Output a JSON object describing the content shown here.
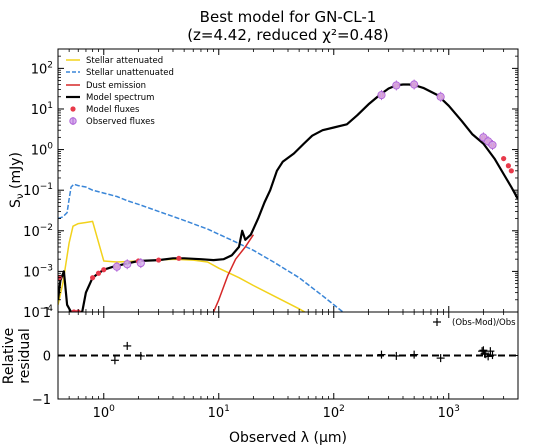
{
  "chart_data": [
    {
      "type": "line",
      "title_line1": "Best model for GN-CL-1",
      "title_line2": "(z=4.42, reduced χ²=0.48)",
      "ylabel_main": "S",
      "ylabel_sub": "ν",
      "ylabel_unit": " (mJy)",
      "xscale": "log",
      "yscale": "log",
      "xlim": [
        0.4,
        4000
      ],
      "ylim": [
        0.0001,
        300
      ],
      "legend_position": "upper-left",
      "yticks": [
        {
          "value": 0.0001,
          "base": "10",
          "exp": "−4"
        },
        {
          "value": 0.001,
          "base": "10",
          "exp": "−3"
        },
        {
          "value": 0.01,
          "base": "10",
          "exp": "−2"
        },
        {
          "value": 0.1,
          "base": "10",
          "exp": "−1"
        },
        {
          "value": 1,
          "base": "10",
          "exp": "0"
        },
        {
          "value": 10,
          "base": "10",
          "exp": "1"
        },
        {
          "value": 100,
          "base": "10",
          "exp": "2"
        }
      ],
      "series": [
        {
          "name": "Stellar attenuated",
          "color": "#f2d21b",
          "style": "solid",
          "points": [
            [
              0.4,
              0.00015
            ],
            [
              0.44,
              0.0005
            ],
            [
              0.5,
              0.005
            ],
            [
              0.54,
              0.013
            ],
            [
              0.6,
              0.015
            ],
            [
              0.7,
              0.016
            ],
            [
              0.8,
              0.017
            ],
            [
              1.0,
              0.0018
            ],
            [
              1.3,
              0.0017
            ],
            [
              2,
              0.0018
            ],
            [
              3,
              0.0019
            ],
            [
              4,
              0.002
            ],
            [
              6,
              0.0019
            ],
            [
              8,
              0.0017
            ],
            [
              10,
              0.0012
            ],
            [
              15,
              0.0007
            ],
            [
              20,
              0.00045
            ],
            [
              30,
              0.00025
            ],
            [
              50,
              0.00012
            ],
            [
              70,
              7e-05
            ]
          ]
        },
        {
          "name": "Stellar unattenuated",
          "color": "#3a86d8",
          "style": "dashed",
          "points": [
            [
              0.4,
              0.02
            ],
            [
              0.44,
              0.022
            ],
            [
              0.48,
              0.028
            ],
            [
              0.5,
              0.06
            ],
            [
              0.52,
              0.12
            ],
            [
              0.55,
              0.14
            ],
            [
              0.6,
              0.13
            ],
            [
              0.7,
              0.12
            ],
            [
              0.8,
              0.1
            ],
            [
              1.0,
              0.085
            ],
            [
              1.3,
              0.07
            ],
            [
              1.6,
              0.055
            ],
            [
              2.0,
              0.045
            ],
            [
              3,
              0.03
            ],
            [
              5,
              0.018
            ],
            [
              8,
              0.011
            ],
            [
              12,
              0.0065
            ],
            [
              20,
              0.0033
            ],
            [
              30,
              0.0017
            ],
            [
              50,
              0.0007
            ],
            [
              80,
              0.00025
            ],
            [
              120,
              0.0001
            ]
          ]
        },
        {
          "name": "Dust emission",
          "color": "#d62828",
          "style": "solid",
          "points": [
            [
              9,
              0.0001
            ],
            [
              10,
              0.0002
            ],
            [
              12,
              0.0008
            ],
            [
              14,
              0.002
            ],
            [
              17,
              0.004
            ],
            [
              20,
              0.008
            ]
          ]
        },
        {
          "name": "Model spectrum",
          "color": "#000000",
          "style": "solid",
          "points": [
            [
              0.4,
              0.0002
            ],
            [
              0.42,
              0.0006
            ],
            [
              0.45,
              0.001
            ],
            [
              0.48,
              0.00015
            ],
            [
              0.52,
              0.0001
            ],
            [
              0.56,
              0.0001
            ],
            [
              0.6,
              0.0001
            ],
            [
              0.65,
              0.0001
            ],
            [
              0.7,
              0.0003
            ],
            [
              0.8,
              0.0007
            ],
            [
              0.9,
              0.0009
            ],
            [
              1.0,
              0.0011
            ],
            [
              1.2,
              0.0013
            ],
            [
              1.5,
              0.0015
            ],
            [
              2,
              0.0018
            ],
            [
              3,
              0.0019
            ],
            [
              4,
              0.0021
            ],
            [
              5,
              0.0021
            ],
            [
              7,
              0.002
            ],
            [
              9,
              0.0019
            ],
            [
              11,
              0.002
            ],
            [
              13,
              0.0025
            ],
            [
              15,
              0.004
            ],
            [
              16,
              0.01
            ],
            [
              17,
              0.006
            ],
            [
              19,
              0.008
            ],
            [
              22,
              0.02
            ],
            [
              25,
              0.05
            ],
            [
              28,
              0.1
            ],
            [
              32,
              0.3
            ],
            [
              36,
              0.5
            ],
            [
              45,
              0.8
            ],
            [
              55,
              1.4
            ],
            [
              65,
              2.2
            ],
            [
              80,
              3
            ],
            [
              100,
              3.5
            ],
            [
              130,
              4.2
            ],
            [
              160,
              7
            ],
            [
              200,
              13
            ],
            [
              250,
              22
            ],
            [
              300,
              32
            ],
            [
              350,
              38
            ],
            [
              400,
              40
            ],
            [
              450,
              40
            ],
            [
              500,
              39
            ],
            [
              600,
              33
            ],
            [
              800,
              22
            ],
            [
              1000,
              12
            ],
            [
              1300,
              5
            ],
            [
              1600,
              2.4
            ],
            [
              2000,
              1.4
            ],
            [
              2500,
              0.6
            ],
            [
              3000,
              0.25
            ],
            [
              3500,
              0.12
            ],
            [
              4000,
              0.06
            ]
          ]
        }
      ],
      "markers": [
        {
          "name": "Model fluxes",
          "color": "#e8394a",
          "style": "dot",
          "points": [
            [
              0.41,
              0.0007
            ],
            [
              0.55,
              0.0001
            ],
            [
              0.6,
              0.0001
            ],
            [
              0.8,
              0.0007
            ],
            [
              0.9,
              0.0009
            ],
            [
              1.0,
              0.0011
            ],
            [
              1.3,
              0.0013
            ],
            [
              2.0,
              0.0018
            ],
            [
              3.0,
              0.0019
            ],
            [
              4.5,
              0.0021
            ],
            [
              260,
              22
            ],
            [
              350,
              38
            ],
            [
              500,
              40
            ],
            [
              850,
              20
            ],
            [
              2000,
              2
            ],
            [
              2200,
              1.6
            ],
            [
              2400,
              1.3
            ],
            [
              3000,
              0.6
            ],
            [
              3300,
              0.4
            ],
            [
              3500,
              0.3
            ]
          ]
        },
        {
          "name": "Observed fluxes",
          "color": "#b267d8",
          "style": "circle",
          "points": [
            [
              1.3,
              0.0013
            ],
            [
              1.6,
              0.0015
            ],
            [
              2.1,
              0.0016
            ],
            [
              260,
              22
            ],
            [
              350,
              38
            ],
            [
              500,
              40
            ],
            [
              850,
              20
            ],
            [
              2000,
              2.0
            ],
            [
              2200,
              1.6
            ],
            [
              2400,
              1.3
            ]
          ]
        }
      ]
    },
    {
      "type": "scatter",
      "ylabel_line1": "Relative",
      "ylabel_line2": "residual",
      "xlabel": "Observed λ (μm)",
      "xscale": "log",
      "xlim": [
        0.4,
        4000
      ],
      "ylim": [
        -1,
        1
      ],
      "zero_line": "dashed",
      "yticks": [
        {
          "value": 1,
          "label": "1"
        },
        {
          "value": 0,
          "label": "0"
        },
        {
          "value": -1,
          "label": "−1"
        }
      ],
      "xticks": [
        {
          "value": 1,
          "base": "10",
          "exp": "0"
        },
        {
          "value": 10,
          "base": "10",
          "exp": "1"
        },
        {
          "value": 100,
          "base": "10",
          "exp": "2"
        },
        {
          "value": 1000,
          "base": "10",
          "exp": "3"
        }
      ],
      "legend_label": "(Obs-Mod)/Obs",
      "legend_position": "upper-right",
      "points": [
        [
          1.25,
          -0.11
        ],
        [
          1.6,
          0.22
        ],
        [
          2.1,
          -0.01
        ],
        [
          260,
          0.02
        ],
        [
          350,
          -0.01
        ],
        [
          500,
          0.02
        ],
        [
          850,
          -0.06
        ],
        [
          1950,
          0.1
        ],
        [
          2000,
          0.12
        ],
        [
          2050,
          0.04
        ],
        [
          2100,
          0.03
        ],
        [
          2200,
          -0.02
        ],
        [
          2300,
          0.1
        ],
        [
          2400,
          0.01
        ]
      ]
    }
  ]
}
